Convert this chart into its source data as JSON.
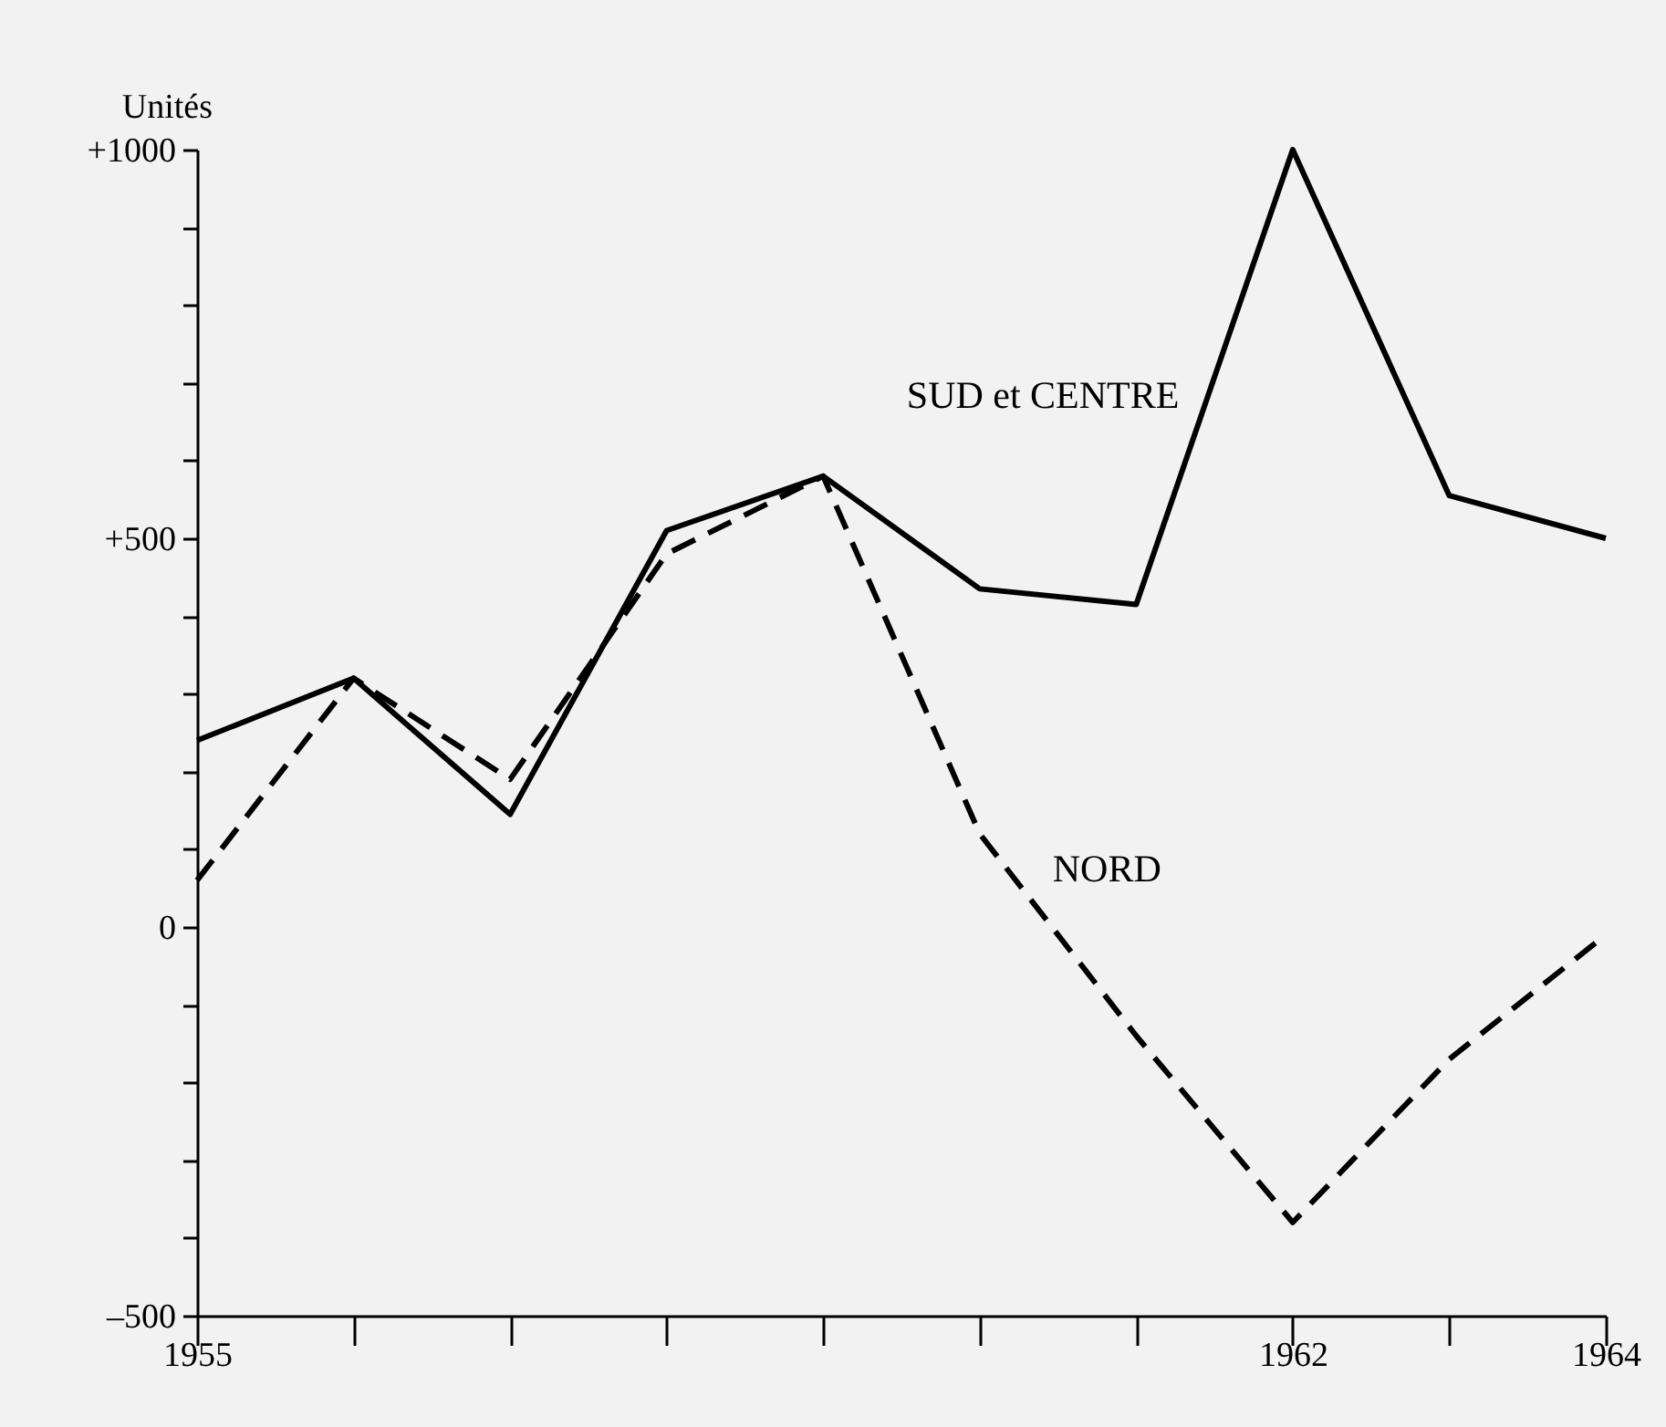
{
  "chart_data": {
    "type": "line",
    "ylabel": "Unités",
    "x": [
      1955,
      1956,
      1957,
      1958,
      1959,
      1960,
      1961,
      1962,
      1963,
      1964
    ],
    "series": [
      {
        "name": "SUD et CENTRE",
        "color": "#000000",
        "line_style": "solid",
        "values": [
          240,
          320,
          145,
          510,
          580,
          435,
          415,
          1000,
          555,
          500
        ]
      },
      {
        "name": "NORD",
        "color": "#000000",
        "line_style": "dashed",
        "values": [
          60,
          320,
          190,
          480,
          580,
          120,
          -140,
          -380,
          -170,
          -10
        ]
      }
    ],
    "xlim": [
      1955,
      1964
    ],
    "xticks": [
      1955,
      {
        "value": 1956,
        "label": null
      },
      {
        "value": 1957,
        "label": null
      },
      {
        "value": 1958,
        "label": null
      },
      {
        "value": 1959,
        "label": null
      },
      {
        "value": 1960,
        "label": null
      },
      {
        "value": 1961,
        "label": null
      },
      1962,
      {
        "value": 1963,
        "label": null
      },
      1964
    ],
    "ylim": [
      -500,
      1000
    ],
    "yticks": [
      {
        "value": -500,
        "label": "–500"
      },
      {
        "value": -400,
        "label": null
      },
      {
        "value": -300,
        "label": null
      },
      {
        "value": -200,
        "label": null
      },
      {
        "value": -100,
        "label": null
      },
      0,
      {
        "value": 100,
        "label": null
      },
      {
        "value": 200,
        "label": null
      },
      {
        "value": 300,
        "label": null
      },
      {
        "value": 400,
        "label": null
      },
      {
        "value": 500,
        "label": "+500"
      },
      {
        "value": 600,
        "label": null
      },
      {
        "value": 700,
        "label": null
      },
      {
        "value": 800,
        "label": null
      },
      {
        "value": 900,
        "label": null
      },
      {
        "value": 1000,
        "label": "+1000"
      }
    ],
    "grid": false,
    "marker": "none"
  }
}
